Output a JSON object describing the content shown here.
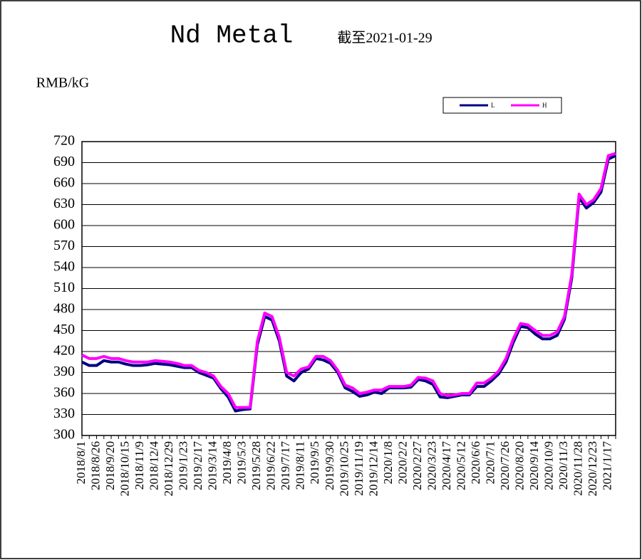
{
  "chart_data": {
    "type": "line",
    "title": "Nd Metal",
    "subtitle": "截至2021-01-29",
    "y_label": "RMB/kG",
    "categories": [
      "2018/8/1",
      null,
      "2018/8/26",
      null,
      "2018/9/20",
      null,
      "2018/10/15",
      null,
      "2018/11/9",
      null,
      "2018/12/4",
      null,
      "2018/12/29",
      null,
      "2019/1/23",
      null,
      "2019/2/17",
      null,
      "2019/3/14",
      null,
      "2019/4/8",
      null,
      "2019/5/3",
      null,
      "2019/5/28",
      null,
      "2019/6/22",
      null,
      "2019/7/17",
      null,
      "2019/8/11",
      null,
      "2019/9/5",
      null,
      "2019/9/30",
      null,
      "2019/10/25",
      null,
      "2019/11/19",
      null,
      "2019/12/14",
      null,
      "2020/1/8",
      null,
      "2020/2/2",
      null,
      "2020/2/27",
      null,
      "2020/3/23",
      null,
      "2020/4/17",
      null,
      "2020/5/12",
      null,
      "2020/6/6",
      null,
      "2020/7/1",
      null,
      "2020/7/26",
      null,
      "2020/8/20",
      null,
      "2020/9/14",
      null,
      "2020/10/9",
      null,
      "2020/11/3",
      null,
      "2020/11/28",
      null,
      "2020/12/23",
      null,
      "2021/1/17",
      null
    ],
    "series": [
      {
        "name": "L",
        "color": "#000080",
        "values": [
          405,
          400,
          400,
          407,
          405,
          405,
          402,
          400,
          400,
          401,
          403,
          402,
          401,
          399,
          397,
          397,
          390,
          386,
          382,
          367,
          355,
          335,
          337,
          338,
          430,
          470,
          465,
          435,
          385,
          378,
          390,
          395,
          410,
          408,
          403,
          390,
          368,
          363,
          356,
          358,
          362,
          360,
          368,
          368,
          368,
          369,
          380,
          378,
          373,
          355,
          354,
          356,
          358,
          358,
          370,
          370,
          378,
          388,
          405,
          433,
          456,
          454,
          445,
          438,
          438,
          443,
          466,
          525,
          640,
          625,
          633,
          648,
          695,
          700
        ]
      },
      {
        "name": "H",
        "color": "#ff00ff",
        "values": [
          415,
          410,
          410,
          413,
          410,
          410,
          407,
          405,
          405,
          405,
          407,
          406,
          405,
          403,
          400,
          400,
          393,
          390,
          385,
          370,
          360,
          340,
          340,
          340,
          435,
          475,
          470,
          440,
          390,
          385,
          395,
          398,
          413,
          413,
          407,
          393,
          372,
          368,
          360,
          362,
          365,
          365,
          370,
          370,
          370,
          372,
          383,
          382,
          378,
          360,
          357,
          358,
          360,
          360,
          375,
          375,
          382,
          392,
          410,
          438,
          460,
          458,
          450,
          443,
          443,
          448,
          470,
          530,
          645,
          630,
          637,
          653,
          700,
          703
        ]
      }
    ],
    "ylim": [
      300,
      720
    ],
    "yticks": [
      300,
      330,
      360,
      390,
      420,
      450,
      480,
      510,
      540,
      570,
      600,
      630,
      660,
      690,
      720
    ],
    "grid": true
  }
}
